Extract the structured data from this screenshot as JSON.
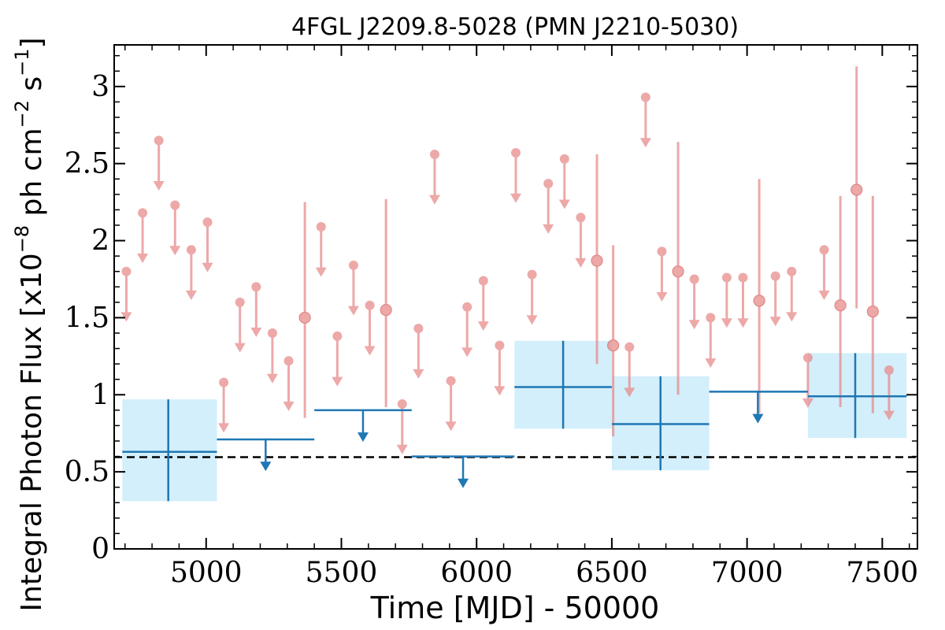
{
  "chart_data": {
    "type": "scatter",
    "title": "4FGL J2209.8-5028 (PMN J2210-5030)",
    "xlabel": "Time [MJD] - 50000",
    "ylabel": {
      "prefix": "Integral Photon Flux [x10",
      "exp1": "−8",
      "middle": " ph cm",
      "exp2": "−2",
      "middle2": " s",
      "exp3": "−1",
      "suffix": "]"
    },
    "xlim": [
      4660,
      7630
    ],
    "ylim": [
      0,
      3.27
    ],
    "xticks": [
      5000,
      5500,
      6000,
      6500,
      7000,
      7500
    ],
    "xtick_labels": [
      "5000",
      "5500",
      "6000",
      "6500",
      "7000",
      "7500"
    ],
    "yticks": [
      0,
      0.5,
      1,
      1.5,
      2,
      2.5,
      3
    ],
    "ytick_labels": [
      "0",
      "0.5",
      "1",
      "1.5",
      "2",
      "2.5",
      "3"
    ],
    "reference_line": 0.595,
    "colors": {
      "fine": "#e88c8c",
      "coarse": "#1f77b4",
      "band": "#d2effb"
    },
    "fine_upper_limits": [
      {
        "x": 4705,
        "y": 1.8
      },
      {
        "x": 4765,
        "y": 2.18
      },
      {
        "x": 4825,
        "y": 2.65
      },
      {
        "x": 4885,
        "y": 2.23
      },
      {
        "x": 4945,
        "y": 1.94
      },
      {
        "x": 5005,
        "y": 2.12
      },
      {
        "x": 5065,
        "y": 1.08
      },
      {
        "x": 5125,
        "y": 1.6
      },
      {
        "x": 5185,
        "y": 1.7
      },
      {
        "x": 5245,
        "y": 1.4
      },
      {
        "x": 5305,
        "y": 1.22
      },
      {
        "x": 5425,
        "y": 2.09
      },
      {
        "x": 5485,
        "y": 1.38
      },
      {
        "x": 5545,
        "y": 1.84
      },
      {
        "x": 5605,
        "y": 1.58
      },
      {
        "x": 5725,
        "y": 0.94
      },
      {
        "x": 5785,
        "y": 1.43
      },
      {
        "x": 5845,
        "y": 2.56
      },
      {
        "x": 5905,
        "y": 1.09
      },
      {
        "x": 5965,
        "y": 1.57
      },
      {
        "x": 6025,
        "y": 1.74
      },
      {
        "x": 6085,
        "y": 1.32
      },
      {
        "x": 6145,
        "y": 2.57
      },
      {
        "x": 6205,
        "y": 1.78
      },
      {
        "x": 6265,
        "y": 2.37
      },
      {
        "x": 6325,
        "y": 2.53
      },
      {
        "x": 6385,
        "y": 2.15
      },
      {
        "x": 6565,
        "y": 1.31
      },
      {
        "x": 6625,
        "y": 2.93
      },
      {
        "x": 6685,
        "y": 1.93
      },
      {
        "x": 6805,
        "y": 1.75
      },
      {
        "x": 6865,
        "y": 1.5
      },
      {
        "x": 6925,
        "y": 1.76
      },
      {
        "x": 6985,
        "y": 1.76
      },
      {
        "x": 7105,
        "y": 1.77
      },
      {
        "x": 7165,
        "y": 1.8
      },
      {
        "x": 7225,
        "y": 1.24
      },
      {
        "x": 7285,
        "y": 1.94
      },
      {
        "x": 7525,
        "y": 1.16
      }
    ],
    "fine_detections": [
      {
        "x": 5365,
        "y": 1.5,
        "ylow": 0.85,
        "yhigh": 2.25
      },
      {
        "x": 5665,
        "y": 1.55,
        "ylow": 0.92,
        "yhigh": 2.27
      },
      {
        "x": 6445,
        "y": 1.87,
        "ylow": 1.2,
        "yhigh": 2.56
      },
      {
        "x": 6505,
        "y": 1.32,
        "ylow": 0.73,
        "yhigh": 1.97
      },
      {
        "x": 6745,
        "y": 1.8,
        "ylow": 1.0,
        "yhigh": 2.64
      },
      {
        "x": 7045,
        "y": 1.61,
        "ylow": 0.88,
        "yhigh": 2.4
      },
      {
        "x": 7345,
        "y": 1.58,
        "ylow": 0.92,
        "yhigh": 2.29
      },
      {
        "x": 7405,
        "y": 2.33,
        "ylow": 1.56,
        "yhigh": 3.13
      },
      {
        "x": 7465,
        "y": 1.54,
        "ylow": 0.88,
        "yhigh": 2.29
      }
    ],
    "coarse_detections": [
      {
        "x": 4860,
        "x0": 4690,
        "x1": 5040,
        "y": 0.63,
        "ylow": 0.31,
        "yhigh": 0.97
      },
      {
        "x": 6320,
        "x0": 6140,
        "x1": 6500,
        "y": 1.05,
        "ylow": 0.78,
        "yhigh": 1.35
      },
      {
        "x": 6680,
        "x0": 6500,
        "x1": 6860,
        "y": 0.81,
        "ylow": 0.51,
        "yhigh": 1.12
      },
      {
        "x": 7400,
        "x0": 7225,
        "x1": 7590,
        "y": 0.99,
        "ylow": 0.72,
        "yhigh": 1.27
      }
    ],
    "coarse_upper_limits": [
      {
        "x": 5220,
        "x0": 5040,
        "x1": 5400,
        "y": 0.71
      },
      {
        "x": 5580,
        "x0": 5400,
        "x1": 5760,
        "y": 0.9
      },
      {
        "x": 5950,
        "x0": 5760,
        "x1": 6140,
        "y": 0.6
      },
      {
        "x": 7040,
        "x0": 6860,
        "x1": 7225,
        "y": 1.02
      }
    ]
  }
}
